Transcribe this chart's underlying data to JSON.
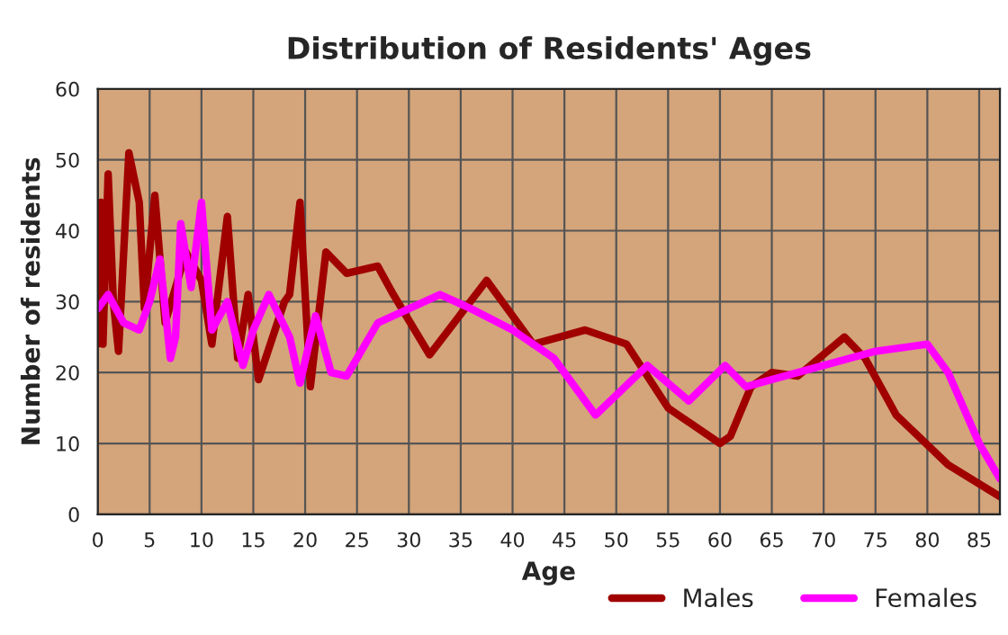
{
  "chart_data": {
    "type": "line",
    "title": "Distribution of Residents' Ages",
    "xlabel": "Age",
    "ylabel": "Number of residents",
    "xlim": [
      0,
      87
    ],
    "xticks": [
      0,
      5,
      10,
      15,
      20,
      25,
      30,
      35,
      40,
      45,
      50,
      55,
      60,
      65,
      70,
      75,
      80,
      85
    ],
    "ylim": [
      0,
      60
    ],
    "yticks": [
      0,
      10,
      20,
      30,
      40,
      50,
      60
    ],
    "grid": true,
    "legend": "bottom right",
    "marker": "none",
    "line_style": "solid",
    "series": [
      {
        "name": "Males",
        "color": "#a00000",
        "x": [
          0,
          0.3,
          0.5,
          1,
          1.5,
          2,
          3,
          4,
          4.5,
          5.5,
          6.5,
          8.5,
          10,
          11,
          12.5,
          13.5,
          14.5,
          15.5,
          18,
          18.5,
          19.5,
          20.5,
          22,
          24,
          27,
          28.5,
          32,
          37.5,
          42,
          47,
          51,
          55,
          60,
          61,
          63,
          65,
          67.5,
          72,
          74,
          77,
          82,
          87
        ],
        "values": [
          24,
          44,
          24,
          48,
          30,
          23,
          51,
          44,
          29,
          45,
          27,
          37,
          33,
          24,
          42,
          22,
          31,
          19,
          30,
          31,
          44,
          18,
          37,
          34,
          35,
          31,
          22.5,
          33,
          24,
          26,
          24,
          15,
          10,
          11,
          18,
          20,
          19.5,
          25,
          22,
          14,
          7,
          2.5
        ]
      },
      {
        "name": "Females",
        "color": "#ff00ff",
        "x": [
          0,
          1,
          2.5,
          4,
          5,
          6,
          7,
          7.5,
          8,
          9,
          10,
          11,
          12.5,
          14,
          15,
          16.5,
          18.5,
          19.5,
          21,
          22.5,
          24,
          27,
          33,
          36,
          40,
          44,
          48,
          53,
          57,
          60.5,
          62.5,
          65,
          70,
          75,
          80,
          82,
          85,
          87
        ],
        "values": [
          29,
          31,
          27,
          26,
          30,
          36,
          22,
          25,
          41,
          32,
          44,
          26,
          30,
          21,
          26,
          31,
          25,
          18.5,
          28,
          20,
          19.5,
          27,
          31,
          29,
          26,
          22,
          14,
          21,
          16,
          21,
          18,
          19,
          21,
          23,
          24,
          20,
          10,
          5
        ]
      }
    ]
  }
}
